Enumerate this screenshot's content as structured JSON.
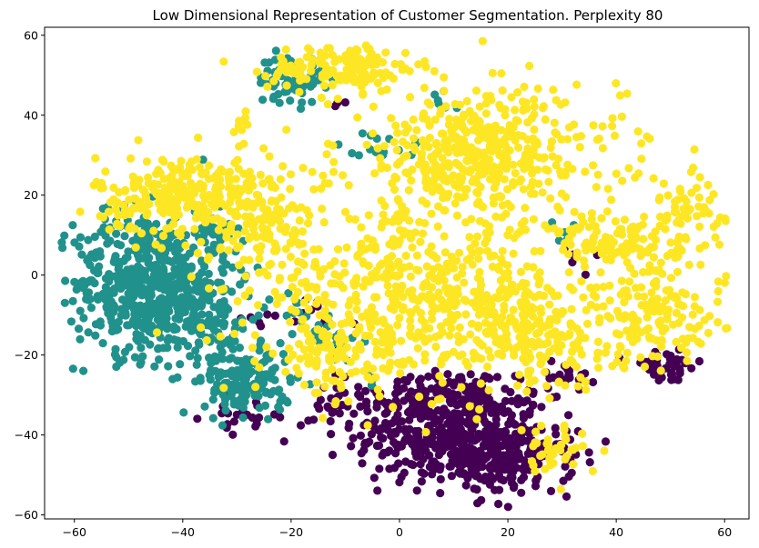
{
  "chart_data": {
    "type": "scatter",
    "title": "Low Dimensional Representation of Customer Segmentation. Perplexity 80",
    "xlabel": "",
    "ylabel": "",
    "xlim": [
      -65.5,
      64.5
    ],
    "ylim": [
      -61,
      62
    ],
    "xticks": [
      -60,
      -40,
      -20,
      0,
      20,
      40,
      60
    ],
    "yticks": [
      -60,
      -40,
      -20,
      0,
      20,
      40,
      60
    ],
    "grid": false,
    "legend": "none",
    "series": [
      {
        "color": "#440154",
        "clusters": [
          {
            "cx": 10,
            "cy": -40,
            "sx": 9,
            "sy": 6,
            "n": 420
          },
          {
            "cx": 20,
            "cy": -47,
            "sx": 6,
            "sy": 4,
            "n": 150
          },
          {
            "cx": 5,
            "cy": -30,
            "sx": 8,
            "sy": 3,
            "n": 120
          },
          {
            "cx": 49,
            "cy": -23,
            "sx": 3.5,
            "sy": 2,
            "n": 45
          },
          {
            "cx": 30,
            "cy": -25,
            "sx": 3,
            "sy": 2,
            "n": 22
          },
          {
            "cx": -28,
            "cy": -35,
            "sx": 4,
            "sy": 2,
            "n": 22
          },
          {
            "cx": -15,
            "cy": -35,
            "sx": 4,
            "sy": 3,
            "n": 16
          },
          {
            "cx": -15,
            "cy": -12,
            "sx": 3,
            "sy": 4,
            "n": 12
          },
          {
            "cx": -25,
            "cy": -10,
            "sx": 2,
            "sy": 2,
            "n": 6
          },
          {
            "cx": 33,
            "cy": 3,
            "sx": 2,
            "sy": 3,
            "n": 5
          },
          {
            "cx": -12,
            "cy": 42,
            "sx": 2,
            "sy": 1,
            "n": 3
          }
        ]
      },
      {
        "color": "#21918c",
        "clusters": [
          {
            "cx": -47,
            "cy": -2,
            "sx": 6.5,
            "sy": 9,
            "n": 520
          },
          {
            "cx": -35,
            "cy": -10,
            "sx": 4,
            "sy": 7,
            "n": 130
          },
          {
            "cx": -28,
            "cy": -27,
            "sx": 4,
            "sy": 4,
            "n": 150
          },
          {
            "cx": -20,
            "cy": 49,
            "sx": 3,
            "sy": 3,
            "n": 70
          },
          {
            "cx": -35,
            "cy": 10,
            "sx": 3,
            "sy": 3,
            "n": 35
          },
          {
            "cx": -14,
            "cy": -14,
            "sx": 3,
            "sy": 3,
            "n": 22
          },
          {
            "cx": -3,
            "cy": 32,
            "sx": 4,
            "sy": 2,
            "n": 15
          },
          {
            "cx": 8,
            "cy": 44,
            "sx": 1.5,
            "sy": 1.5,
            "n": 6
          },
          {
            "cx": 30,
            "cy": 11,
            "sx": 1.5,
            "sy": 1.5,
            "n": 6
          },
          {
            "cx": -7,
            "cy": -26,
            "sx": 1.5,
            "sy": 1.5,
            "n": 4
          },
          {
            "cx": -20,
            "cy": -8,
            "sx": 2,
            "sy": 2,
            "n": 8
          }
        ]
      },
      {
        "color": "#fde725",
        "clusters": [
          {
            "cx": -38,
            "cy": 20,
            "sx": 9,
            "sy": 5,
            "n": 300
          },
          {
            "cx": -25,
            "cy": 10,
            "sx": 5,
            "sy": 6,
            "n": 90
          },
          {
            "cx": -10,
            "cy": 52,
            "sx": 7,
            "sy": 3,
            "n": 150
          },
          {
            "cx": 15,
            "cy": 30,
            "sx": 13,
            "sy": 8,
            "n": 460
          },
          {
            "cx": 2,
            "cy": -5,
            "sx": 14,
            "sy": 10,
            "n": 520
          },
          {
            "cx": -12,
            "cy": -20,
            "sx": 6,
            "sy": 5,
            "n": 90
          },
          {
            "cx": 25,
            "cy": -15,
            "sx": 8,
            "sy": 7,
            "n": 200
          },
          {
            "cx": 40,
            "cy": 8,
            "sx": 6,
            "sy": 4,
            "n": 120
          },
          {
            "cx": 48,
            "cy": -10,
            "sx": 6,
            "sy": 6,
            "n": 140
          },
          {
            "cx": 53,
            "cy": 15,
            "sx": 3.5,
            "sy": 5,
            "n": 60
          },
          {
            "cx": 28,
            "cy": -45,
            "sx": 3,
            "sy": 3,
            "n": 40
          },
          {
            "cx": -29,
            "cy": 37,
            "sx": 1.5,
            "sy": 3,
            "n": 10
          }
        ]
      }
    ]
  }
}
